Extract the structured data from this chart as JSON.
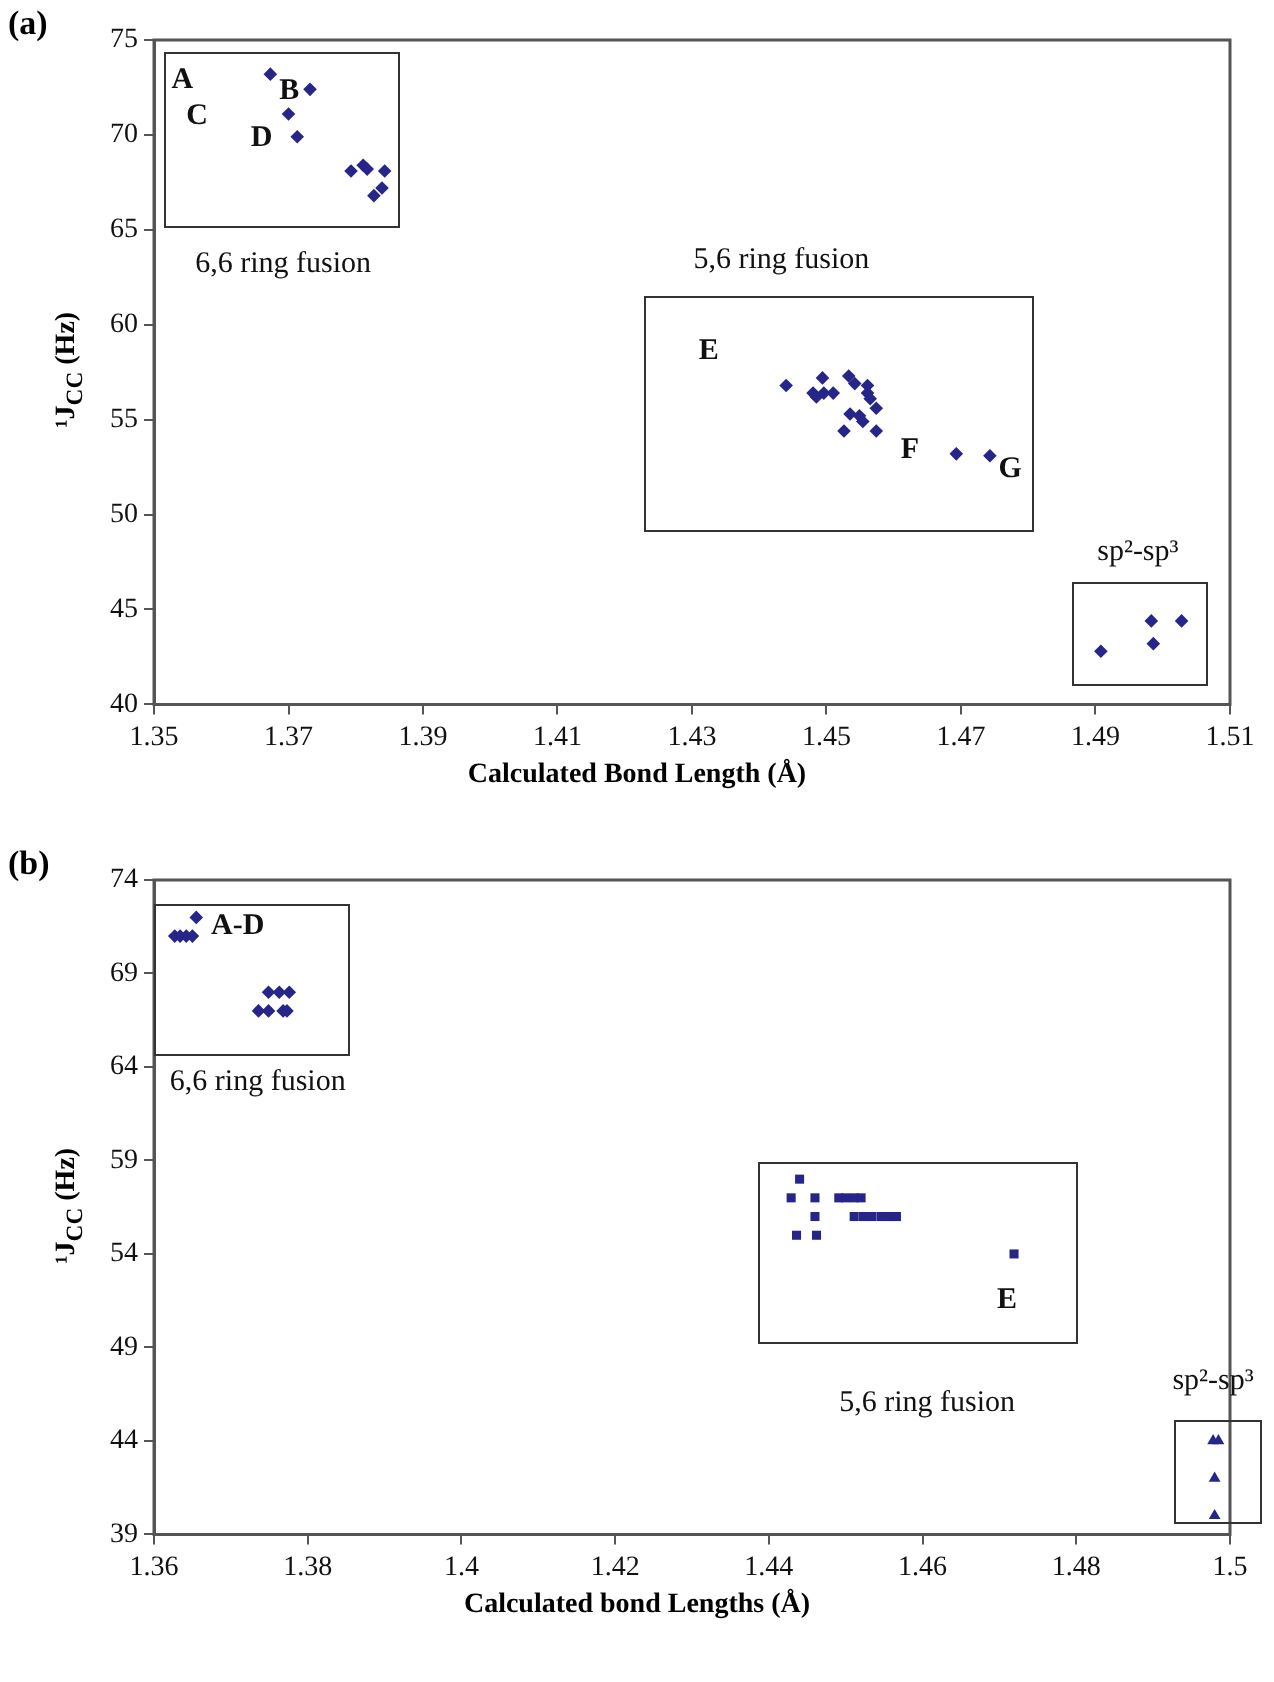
{
  "chart_data": [
    {
      "type": "scatter",
      "title": "(a)",
      "xlabel": "Calculated Bond Length (Å)",
      "ylabel": "¹J$_{CC}$ (Hz)",
      "xlim": [
        1.35,
        1.51
      ],
      "xticks": [
        1.35,
        1.37,
        1.39,
        1.41,
        1.43,
        1.45,
        1.47,
        1.49,
        1.51
      ],
      "ylim": [
        40,
        75
      ],
      "yticks": [
        40,
        45,
        50,
        55,
        60,
        65,
        70,
        75
      ],
      "grid": false,
      "legend": false,
      "series": [
        {
          "color": "#25258a",
          "marker": "diamond",
          "x": [
            1.3673,
            1.3732,
            1.37,
            1.3713,
            1.3793,
            1.3811,
            1.3817,
            1.3843,
            1.3827,
            1.3839
          ],
          "values": [
            73.2,
            72.4,
            71.1,
            69.9,
            68.1,
            68.4,
            68.2,
            68.1,
            66.8,
            67.2
          ]
        },
        {
          "color": "#25258a",
          "marker": "diamond",
          "x": [
            1.444,
            1.4494,
            1.448,
            1.4485,
            1.4496,
            1.451,
            1.4533,
            1.4542,
            1.4561,
            1.4561,
            1.4565,
            1.4574,
            1.4535,
            1.4549,
            1.4554,
            1.4526,
            1.4574,
            1.4693,
            1.4743
          ],
          "values": [
            56.8,
            57.2,
            56.4,
            56.2,
            56.4,
            56.4,
            57.3,
            56.9,
            56.8,
            56.4,
            56.1,
            55.6,
            55.3,
            55.2,
            54.9,
            54.4,
            54.4,
            53.2,
            53.1
          ]
        },
        {
          "color": "#25258a",
          "marker": "diamond",
          "x": [
            1.4908,
            1.4983,
            1.5028,
            1.4986
          ],
          "values": [
            42.8,
            44.4,
            44.4,
            43.2
          ]
        }
      ],
      "annotations": [
        "A",
        "B",
        "C",
        "D",
        "6,6 ring fusion",
        "E",
        "F",
        "G",
        "5,6 ring fusion",
        "sp²-sp³"
      ]
    },
    {
      "type": "scatter",
      "title": "(b)",
      "xlabel": "Calculated bond Lengths (Å)",
      "ylabel": "¹J$_{CC}$ (Hz)",
      "xlim": [
        1.36,
        1.5
      ],
      "xticks": [
        1.36,
        1.38,
        1.4,
        1.42,
        1.44,
        1.46,
        1.48,
        1.5
      ],
      "ylim": [
        39,
        74
      ],
      "yticks": [
        39,
        44,
        49,
        54,
        59,
        64,
        69,
        74
      ],
      "grid": false,
      "legend": false,
      "series": [
        {
          "color": "#25258a",
          "marker": "diamond",
          "x": [
            1.3655,
            1.3627,
            1.3634,
            1.3642,
            1.365,
            1.3749,
            1.3763,
            1.3776,
            1.3736,
            1.3749,
            1.3768,
            1.3773
          ],
          "values": [
            72,
            71,
            71,
            71,
            71,
            68,
            68,
            68,
            67,
            67,
            67,
            67
          ]
        },
        {
          "color": "#25258a",
          "marker": "square",
          "x": [
            1.444,
            1.4429,
            1.446,
            1.4491,
            1.45,
            1.4511,
            1.452,
            1.446,
            1.4511,
            1.4523,
            1.4534,
            1.4546,
            1.4557,
            1.4566,
            1.4436,
            1.4462,
            1.4719
          ],
          "values": [
            58,
            57,
            57,
            57,
            57,
            57,
            57,
            56,
            56,
            56,
            56,
            56,
            56,
            56,
            55,
            55,
            54
          ]
        },
        {
          "color": "#25258a",
          "marker": "triangle",
          "x": [
            1.4978,
            1.4985,
            1.498,
            1.498
          ],
          "values": [
            44,
            44,
            42,
            40
          ]
        }
      ],
      "annotations": [
        "A-D",
        "6,6 ring fusion",
        "E",
        "5,6 ring fusion",
        "sp²-sp³"
      ]
    }
  ]
}
